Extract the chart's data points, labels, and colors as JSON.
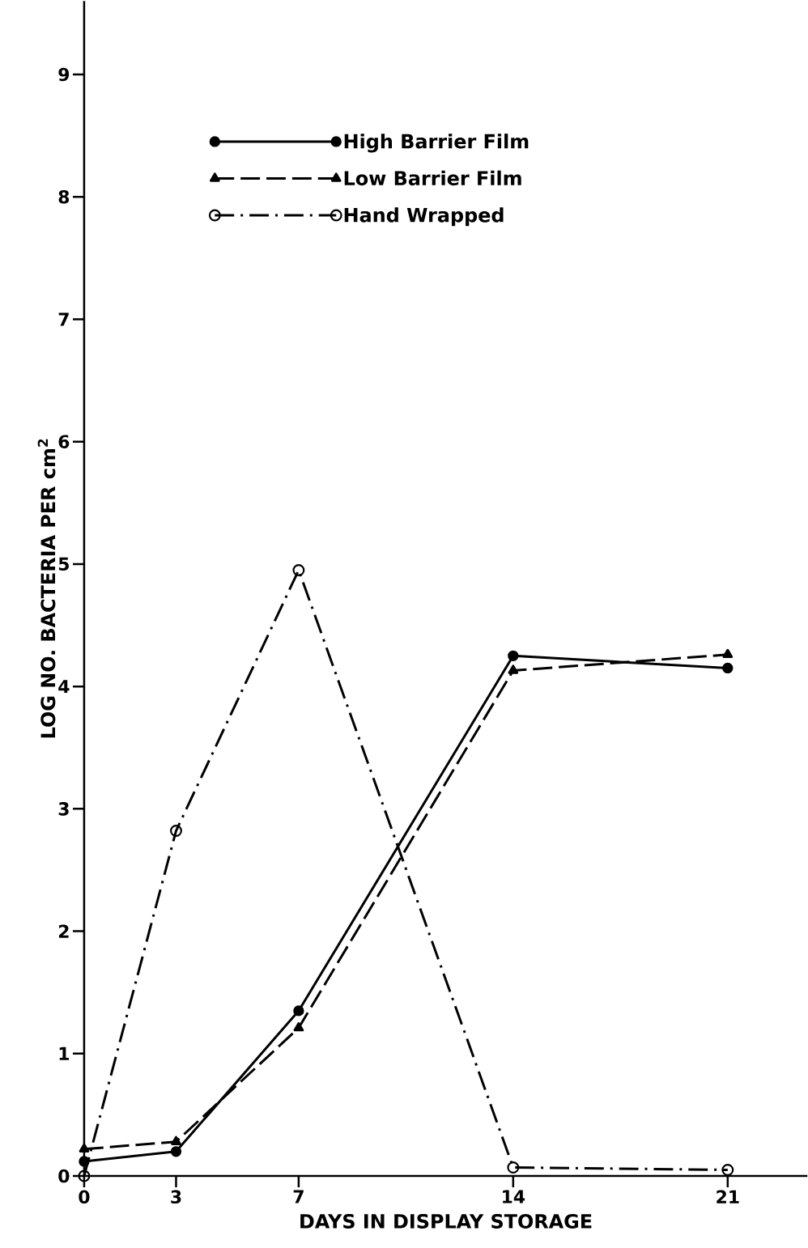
{
  "chart_data": {
    "type": "line",
    "xlabel": "DAYS IN DISPLAY STORAGE",
    "ylabel": "LOG NO. BACTERIA PER cm$^{2}$",
    "x": [
      0,
      3,
      7,
      14,
      21
    ],
    "series": [
      {
        "name": "High Barrier Film",
        "color": "#000000",
        "marker": "circle",
        "line_style": "solid",
        "values": [
          0.12,
          0.2,
          1.35,
          4.25,
          4.15
        ]
      },
      {
        "name": "Low Barrier Film",
        "color": "#000000",
        "marker": "triangle",
        "line_style": "dashed",
        "values": [
          0.22,
          0.28,
          1.21,
          4.13,
          4.26
        ]
      },
      {
        "name": "Hand Wrapped",
        "color": "#000000",
        "marker": "open circle",
        "line_style": "dashdot",
        "values": [
          0,
          2.82,
          4.95,
          0.07,
          0.05
        ]
      }
    ],
    "xlim": [
      0,
      23.6
    ],
    "ylim": [
      0,
      9.6
    ],
    "xticks": [
      0,
      3,
      7,
      14,
      21
    ],
    "yticks": [
      0,
      1,
      2,
      3,
      4,
      5,
      6,
      7,
      8,
      9
    ],
    "grid": false,
    "legend": "top left"
  }
}
